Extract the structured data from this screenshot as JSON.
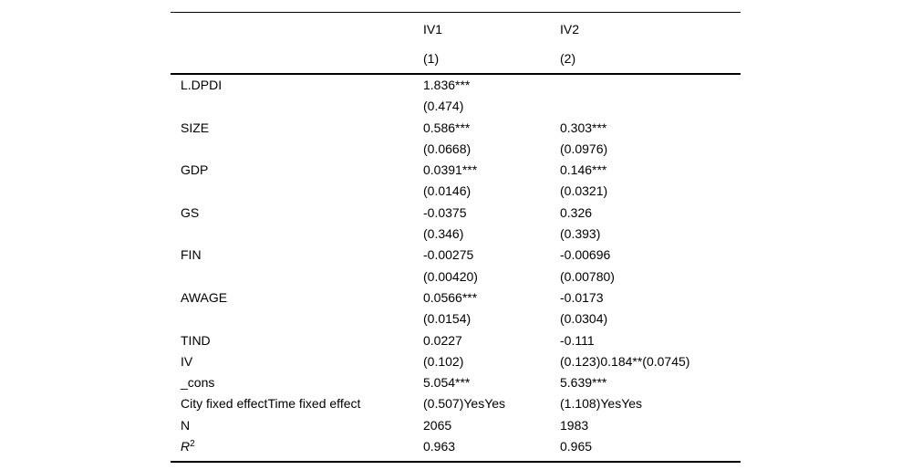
{
  "page": {
    "background": "#ffffff",
    "text_color": "#000000"
  },
  "table": {
    "type": "table",
    "header": {
      "label_col": "",
      "columns": [
        {
          "title": "IV1",
          "sub": "(1)"
        },
        {
          "title": "IV2",
          "sub": "(2)"
        }
      ]
    },
    "rows": [
      {
        "label": "L.DPDI",
        "c1": "1.836***",
        "c2": ""
      },
      {
        "label": "",
        "c1": "(0.474)",
        "c2": ""
      },
      {
        "label": "SIZE",
        "c1": "0.586***",
        "c2": "0.303***"
      },
      {
        "label": "",
        "c1": "(0.0668)",
        "c2": "(0.0976)"
      },
      {
        "label": "GDP",
        "c1": "0.0391***",
        "c2": "0.146***"
      },
      {
        "label": "",
        "c1": "(0.0146)",
        "c2": "(0.0321)"
      },
      {
        "label": "GS",
        "c1": "-0.0375",
        "c2": "0.326"
      },
      {
        "label": "",
        "c1": "(0.346)",
        "c2": "(0.393)"
      },
      {
        "label": "FIN",
        "c1": "-0.00275",
        "c2": "-0.00696"
      },
      {
        "label": "",
        "c1": "(0.00420)",
        "c2": "(0.00780)"
      },
      {
        "label": "AWAGE",
        "c1": "0.0566***",
        "c2": "-0.0173"
      },
      {
        "label": "",
        "c1": "(0.0154)",
        "c2": "(0.0304)"
      },
      {
        "label": "TIND",
        "c1": "0.0227",
        "c2": "-0.111"
      },
      {
        "label": "IV",
        "c1": "(0.102)",
        "c2": "(0.123)0.184**(0.0745)"
      },
      {
        "label": "_cons",
        "c1": "5.054***",
        "c2": "5.639***"
      },
      {
        "label": "City fixed effectTime fixed effect",
        "c1": "(0.507)YesYes",
        "c2": "(1.108)YesYes"
      },
      {
        "label": "N",
        "c1": "2065",
        "c2": "1983"
      },
      {
        "label": "R",
        "label_sup": "2",
        "label_italic": true,
        "c1": "0.963",
        "c2": "0.965"
      }
    ]
  }
}
